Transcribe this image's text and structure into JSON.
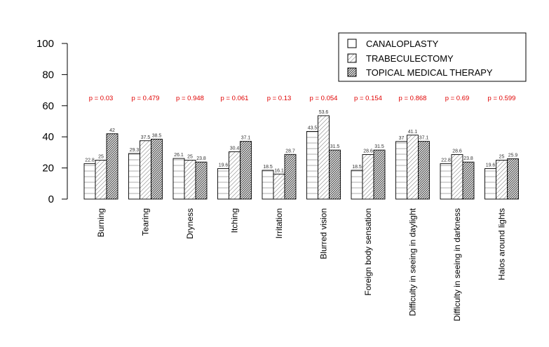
{
  "chart_data": {
    "type": "bar",
    "categories": [
      "Burning",
      "Tearing",
      "Dryness",
      "Itching",
      "Irritation",
      "Blurred vision",
      "Foreign body sensation",
      "Difficulty in seeing in daylight",
      "Difficulty in seeing in darkness",
      "Halos around lights"
    ],
    "series": [
      {
        "name": "CANALOPLASTY",
        "values": [
          22.8,
          29.3,
          26.1,
          19.6,
          18.5,
          43.5,
          18.5,
          37,
          22.8,
          19.6
        ],
        "labels": [
          "22.8",
          "29.3",
          "26.1",
          "19.6",
          "18.5",
          "43.5",
          "18.5",
          "37",
          "22.8",
          "19.6"
        ]
      },
      {
        "name": "TRABECULECTOMY",
        "values": [
          25,
          37.5,
          25,
          30.4,
          16.1,
          53.6,
          28.6,
          41.1,
          28.6,
          25
        ],
        "labels": [
          "25",
          "37.5",
          "25",
          "30.4",
          "16.1",
          "53.6",
          "28.6",
          "41.1",
          "28.6",
          "25"
        ]
      },
      {
        "name": "TOPICAL MEDICAL THERAPY",
        "values": [
          42,
          38.5,
          23.8,
          37.1,
          28.7,
          31.5,
          31.5,
          37.1,
          23.8,
          25.9
        ],
        "labels": [
          "42",
          "38.5",
          "23.8",
          "37.1",
          "28.7",
          "31.5",
          "31.5",
          "37.1",
          "23.8",
          "25.9"
        ]
      }
    ],
    "p_values": [
      "p = 0.03",
      "p = 0.479",
      "p = 0.948",
      "p = 0.061",
      "p = 0.13",
      "p = 0.054",
      "p = 0.154",
      "p = 0.868",
      "p = 0.69",
      "p = 0.599"
    ],
    "ylim": [
      0,
      100
    ],
    "yticks": [
      "0",
      "20",
      "40",
      "60",
      "80",
      "100"
    ],
    "legend_position": "top-right",
    "grid": false,
    "colors": {
      "bar_fill": "#ffffff",
      "bar_stroke": "#000000",
      "p_value": "#e00000",
      "value_label": "#333333"
    },
    "patterns": [
      "horizontal-lines",
      "diagonal-light",
      "diagonal-dense"
    ]
  }
}
